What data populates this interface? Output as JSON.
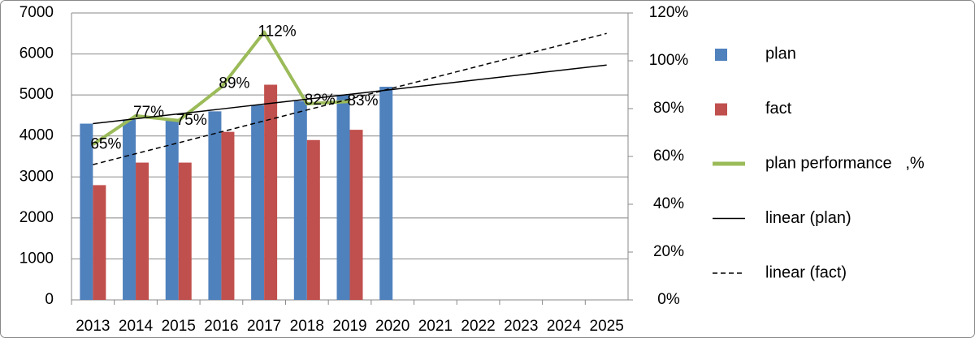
{
  "chart_data": {
    "type": "bar-line",
    "categories": [
      "2013",
      "2014",
      "2015",
      "2016",
      "2017",
      "2018",
      "2019",
      "2020",
      "2021",
      "2022",
      "2023",
      "2024",
      "2025"
    ],
    "series": [
      {
        "name": "plan",
        "kind": "bar",
        "color": "#4f81bd",
        "values": [
          4300,
          4400,
          4400,
          4600,
          4750,
          4850,
          5000,
          5200,
          null,
          null,
          null,
          null,
          null
        ]
      },
      {
        "name": "fact",
        "kind": "bar",
        "color": "#c0504d",
        "values": [
          2800,
          3350,
          3350,
          4100,
          5250,
          3900,
          4150,
          null,
          null,
          null,
          null,
          null,
          null
        ]
      },
      {
        "name": "plan performance   ,%",
        "kind": "line",
        "axis": "y2",
        "color": "#9bbb59",
        "values": [
          65,
          77,
          75,
          89,
          112,
          82,
          83,
          null,
          null,
          null,
          null,
          null,
          null
        ],
        "value_labels": [
          "65%",
          "77%",
          "75%",
          "89%",
          "112%",
          "82%",
          "83%",
          null,
          null,
          null,
          null,
          null,
          null
        ]
      },
      {
        "name": "linear (plan)",
        "kind": "trend",
        "color": "#000000",
        "dash": false,
        "values": [
          4300,
          4419,
          4538,
          4658,
          4777,
          4896,
          5015,
          5134,
          5253,
          5373,
          5492,
          5611,
          5730
        ]
      },
      {
        "name": "linear (fact)",
        "kind": "trend",
        "color": "#000000",
        "dash": true,
        "values": [
          3300,
          3567,
          3833,
          4100,
          4367,
          4633,
          4900,
          5167,
          5433,
          5700,
          5967,
          6233,
          6500
        ]
      }
    ],
    "ylim": [
      0,
      7000
    ],
    "yticks": [
      0,
      1000,
      2000,
      3000,
      4000,
      5000,
      6000,
      7000
    ],
    "y2lim": [
      0,
      120
    ],
    "y2ticks": [
      {
        "value": 0,
        "label": "0%"
      },
      {
        "value": 20,
        "label": "20%"
      },
      {
        "value": 40,
        "label": "40%"
      },
      {
        "value": 60,
        "label": "60%"
      },
      {
        "value": 80,
        "label": "80%"
      },
      {
        "value": 100,
        "label": "100%"
      },
      {
        "value": 120,
        "label": "120%"
      }
    ],
    "legend": "right"
  }
}
